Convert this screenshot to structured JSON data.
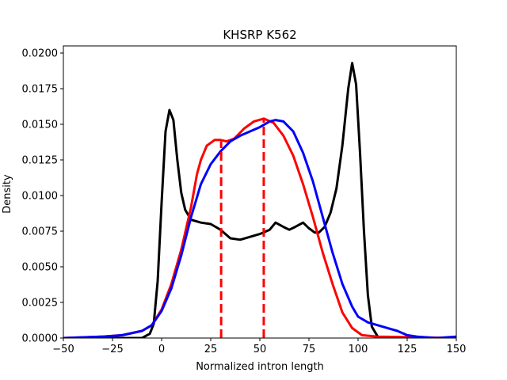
{
  "chart_data": {
    "type": "line",
    "title": "KHSRP K562",
    "xlabel": "Normalized intron length",
    "ylabel": "Density",
    "xlim": [
      -50,
      150
    ],
    "ylim": [
      0,
      0.0205
    ],
    "grid": false,
    "x_ticks": [
      -50,
      -25,
      0,
      25,
      50,
      75,
      100,
      125,
      150
    ],
    "x_tick_labels": [
      "−50",
      "−25",
      "0",
      "25",
      "50",
      "75",
      "100",
      "125",
      "150"
    ],
    "y_ticks": [
      0,
      0.0025,
      0.005,
      0.0075,
      0.01,
      0.0125,
      0.015,
      0.0175,
      0.02
    ],
    "y_tick_labels": [
      "0.0000",
      "0.0025",
      "0.0050",
      "0.0075",
      "0.0100",
      "0.0125",
      "0.0150",
      "0.0175",
      "0.0200"
    ],
    "series": [
      {
        "color": "#000000",
        "style": "solid",
        "points": [
          [
            -50,
            0
          ],
          [
            -10,
            0
          ],
          [
            -6,
            0.0003
          ],
          [
            -4,
            0.001
          ],
          [
            -2,
            0.004
          ],
          [
            0,
            0.0095
          ],
          [
            2,
            0.0145
          ],
          [
            4,
            0.016
          ],
          [
            6,
            0.0153
          ],
          [
            8,
            0.0125
          ],
          [
            10,
            0.0102
          ],
          [
            12,
            0.009
          ],
          [
            15,
            0.0083
          ],
          [
            20,
            0.0081
          ],
          [
            25,
            0.008
          ],
          [
            30,
            0.0076
          ],
          [
            35,
            0.007
          ],
          [
            40,
            0.0069
          ],
          [
            45,
            0.0071
          ],
          [
            50,
            0.0073
          ],
          [
            55,
            0.0076
          ],
          [
            58,
            0.0081
          ],
          [
            62,
            0.0078
          ],
          [
            65,
            0.0076
          ],
          [
            68,
            0.0078
          ],
          [
            72,
            0.0081
          ],
          [
            75,
            0.0077
          ],
          [
            78,
            0.0074
          ],
          [
            80,
            0.0074
          ],
          [
            83,
            0.0078
          ],
          [
            86,
            0.0088
          ],
          [
            89,
            0.0105
          ],
          [
            92,
            0.0135
          ],
          [
            95,
            0.0175
          ],
          [
            97,
            0.0193
          ],
          [
            99,
            0.0178
          ],
          [
            101,
            0.013
          ],
          [
            103,
            0.0075
          ],
          [
            105,
            0.003
          ],
          [
            107,
            0.0008
          ],
          [
            110,
            0.0001
          ],
          [
            113,
            0
          ],
          [
            150,
            0
          ]
        ]
      },
      {
        "color": "#ff0000",
        "style": "solid",
        "points": [
          [
            -50,
            0
          ],
          [
            -30,
            0.0001
          ],
          [
            -20,
            0.0002
          ],
          [
            -10,
            0.0005
          ],
          [
            -5,
            0.0009
          ],
          [
            0,
            0.002
          ],
          [
            5,
            0.0038
          ],
          [
            10,
            0.0062
          ],
          [
            15,
            0.0092
          ],
          [
            18,
            0.0115
          ],
          [
            20,
            0.0125
          ],
          [
            23,
            0.0135
          ],
          [
            27,
            0.0139
          ],
          [
            30,
            0.0139
          ],
          [
            33,
            0.0138
          ],
          [
            37,
            0.014
          ],
          [
            42,
            0.0147
          ],
          [
            47,
            0.0152
          ],
          [
            52,
            0.0154
          ],
          [
            57,
            0.0151
          ],
          [
            62,
            0.0142
          ],
          [
            67,
            0.0128
          ],
          [
            72,
            0.0108
          ],
          [
            77,
            0.0085
          ],
          [
            82,
            0.006
          ],
          [
            87,
            0.0038
          ],
          [
            92,
            0.0018
          ],
          [
            97,
            0.0007
          ],
          [
            102,
            0.0002
          ],
          [
            110,
            0.0001
          ],
          [
            150,
            0
          ]
        ]
      },
      {
        "color": "#0000ff",
        "style": "solid",
        "points": [
          [
            -50,
            0
          ],
          [
            -30,
            0.0001
          ],
          [
            -20,
            0.0002
          ],
          [
            -10,
            0.0005
          ],
          [
            -5,
            0.0009
          ],
          [
            0,
            0.0019
          ],
          [
            5,
            0.0035
          ],
          [
            10,
            0.0058
          ],
          [
            15,
            0.0085
          ],
          [
            20,
            0.0108
          ],
          [
            25,
            0.0122
          ],
          [
            30,
            0.0131
          ],
          [
            35,
            0.0138
          ],
          [
            40,
            0.0142
          ],
          [
            45,
            0.0145
          ],
          [
            50,
            0.0148
          ],
          [
            55,
            0.0152
          ],
          [
            58,
            0.0153
          ],
          [
            62,
            0.0152
          ],
          [
            67,
            0.0145
          ],
          [
            72,
            0.013
          ],
          [
            77,
            0.011
          ],
          [
            82,
            0.0085
          ],
          [
            87,
            0.006
          ],
          [
            92,
            0.0038
          ],
          [
            97,
            0.0022
          ],
          [
            100,
            0.0015
          ],
          [
            105,
            0.0011
          ],
          [
            110,
            0.0009
          ],
          [
            115,
            0.0007
          ],
          [
            120,
            0.0005
          ],
          [
            125,
            0.0002
          ],
          [
            130,
            0.0001
          ],
          [
            140,
            0
          ],
          [
            150,
            0.0001
          ]
        ]
      },
      {
        "color": "#ff0000",
        "style": "dashed",
        "points": [
          [
            30.3,
            0
          ],
          [
            30.3,
            0.0138
          ]
        ]
      },
      {
        "color": "#ff0000",
        "style": "dashed",
        "points": [
          [
            52,
            0
          ],
          [
            52,
            0.0154
          ]
        ]
      }
    ]
  }
}
